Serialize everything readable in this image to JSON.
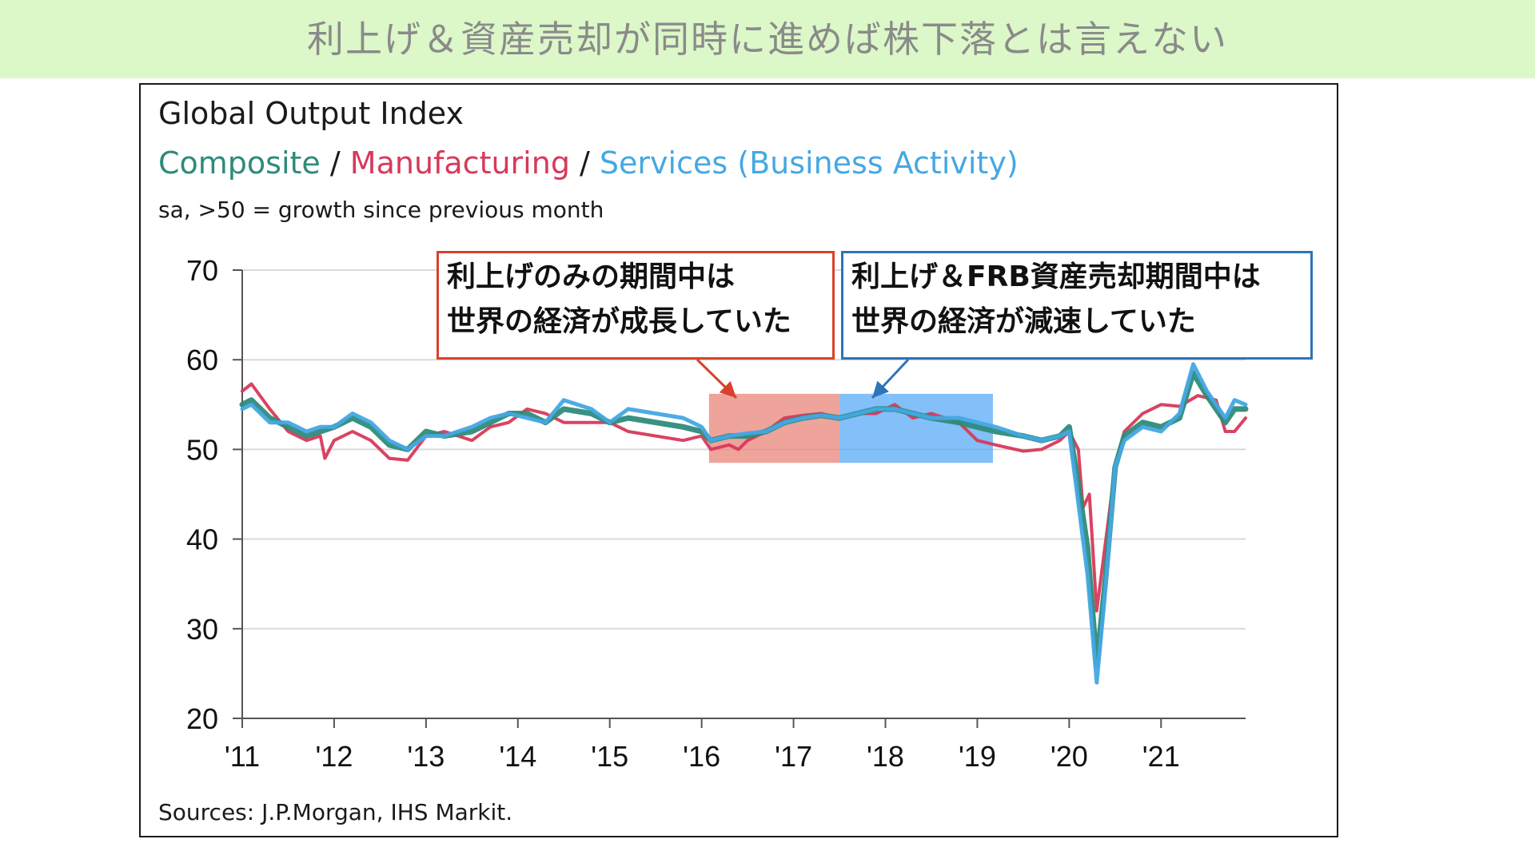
{
  "banner": {
    "text": "利上げ＆資産売却が同時に進めば株下落とは言えない"
  },
  "chart_data": {
    "type": "line",
    "title": "Global Output Index",
    "subtitle": {
      "composite": "Composite",
      "sep1": " / ",
      "manufacturing": "Manufacturing",
      "sep2": " / ",
      "services": "Services (Business Activity)"
    },
    "units_note": "sa, >50 = growth since previous month",
    "source": "Sources: J.P.Morgan, IHS Markit.",
    "ylim": [
      20,
      70
    ],
    "xlim": [
      2011.0,
      2021.92
    ],
    "yticks": [
      "70",
      "60",
      "50",
      "40",
      "30",
      "20"
    ],
    "xticks": [
      "'11",
      "'12",
      "'13",
      "'14",
      "'15",
      "'16",
      "'17",
      "'18",
      "'19",
      "'20",
      "'21"
    ],
    "grid": true,
    "series": [
      {
        "name": "Manufacturing",
        "color": "#d7395a",
        "points": [
          [
            2011.0,
            56.5
          ],
          [
            2011.1,
            57.3
          ],
          [
            2011.3,
            54.5
          ],
          [
            2011.5,
            52.0
          ],
          [
            2011.7,
            51.0
          ],
          [
            2011.85,
            51.5
          ],
          [
            2011.9,
            49.0
          ],
          [
            2012.0,
            51.0
          ],
          [
            2012.2,
            52.0
          ],
          [
            2012.4,
            51.0
          ],
          [
            2012.6,
            49.0
          ],
          [
            2012.8,
            48.8
          ],
          [
            2013.0,
            51.5
          ],
          [
            2013.2,
            52.0
          ],
          [
            2013.5,
            51.0
          ],
          [
            2013.7,
            52.5
          ],
          [
            2013.9,
            53.0
          ],
          [
            2014.1,
            54.5
          ],
          [
            2014.3,
            54.0
          ],
          [
            2014.5,
            53.0
          ],
          [
            2014.8,
            53.0
          ],
          [
            2015.0,
            53.0
          ],
          [
            2015.2,
            52.0
          ],
          [
            2015.5,
            51.5
          ],
          [
            2015.8,
            51.0
          ],
          [
            2016.0,
            51.5
          ],
          [
            2016.1,
            50.0
          ],
          [
            2016.3,
            50.5
          ],
          [
            2016.4,
            50.0
          ],
          [
            2016.5,
            51.0
          ],
          [
            2016.7,
            52.0
          ],
          [
            2016.9,
            53.5
          ],
          [
            2017.1,
            53.8
          ],
          [
            2017.3,
            54.0
          ],
          [
            2017.5,
            53.5
          ],
          [
            2017.7,
            54.0
          ],
          [
            2017.9,
            54.0
          ],
          [
            2018.1,
            55.0
          ],
          [
            2018.3,
            53.5
          ],
          [
            2018.5,
            54.0
          ],
          [
            2018.8,
            53.0
          ],
          [
            2019.0,
            51.0
          ],
          [
            2019.2,
            50.5
          ],
          [
            2019.5,
            49.8
          ],
          [
            2019.7,
            50.0
          ],
          [
            2019.9,
            51.0
          ],
          [
            2020.0,
            52.0
          ],
          [
            2020.1,
            50.0
          ],
          [
            2020.15,
            43.5
          ],
          [
            2020.22,
            45.0
          ],
          [
            2020.3,
            32.0
          ],
          [
            2020.4,
            40.0
          ],
          [
            2020.5,
            48.0
          ],
          [
            2020.6,
            52.0
          ],
          [
            2020.8,
            54.0
          ],
          [
            2021.0,
            55.0
          ],
          [
            2021.2,
            54.8
          ],
          [
            2021.4,
            56.0
          ],
          [
            2021.6,
            55.5
          ],
          [
            2021.7,
            52.0
          ],
          [
            2021.8,
            52.0
          ],
          [
            2021.92,
            53.5
          ]
        ]
      },
      {
        "name": "Composite",
        "color": "#2e8b7a",
        "points": [
          [
            2011.0,
            55.0
          ],
          [
            2011.1,
            55.5
          ],
          [
            2011.3,
            53.5
          ],
          [
            2011.5,
            52.5
          ],
          [
            2011.7,
            51.5
          ],
          [
            2011.85,
            52.0
          ],
          [
            2012.0,
            52.5
          ],
          [
            2012.2,
            53.5
          ],
          [
            2012.4,
            52.5
          ],
          [
            2012.6,
            50.5
          ],
          [
            2012.8,
            50.0
          ],
          [
            2013.0,
            52.0
          ],
          [
            2013.2,
            51.5
          ],
          [
            2013.5,
            52.0
          ],
          [
            2013.7,
            53.0
          ],
          [
            2013.9,
            54.0
          ],
          [
            2014.1,
            54.0
          ],
          [
            2014.3,
            53.0
          ],
          [
            2014.5,
            54.5
          ],
          [
            2014.8,
            54.0
          ],
          [
            2015.0,
            53.0
          ],
          [
            2015.2,
            53.5
          ],
          [
            2015.5,
            53.0
          ],
          [
            2015.8,
            52.5
          ],
          [
            2016.0,
            52.0
          ],
          [
            2016.1,
            51.0
          ],
          [
            2016.3,
            51.5
          ],
          [
            2016.5,
            51.5
          ],
          [
            2016.7,
            52.0
          ],
          [
            2016.9,
            53.0
          ],
          [
            2017.1,
            53.5
          ],
          [
            2017.3,
            53.8
          ],
          [
            2017.5,
            53.5
          ],
          [
            2017.7,
            54.0
          ],
          [
            2017.9,
            54.5
          ],
          [
            2018.1,
            54.5
          ],
          [
            2018.3,
            54.0
          ],
          [
            2018.5,
            53.5
          ],
          [
            2018.8,
            53.0
          ],
          [
            2019.0,
            52.5
          ],
          [
            2019.2,
            52.0
          ],
          [
            2019.5,
            51.5
          ],
          [
            2019.7,
            51.0
          ],
          [
            2019.9,
            51.5
          ],
          [
            2020.0,
            52.5
          ],
          [
            2020.1,
            46.0
          ],
          [
            2020.2,
            39.0
          ],
          [
            2020.3,
            26.0
          ],
          [
            2020.4,
            36.0
          ],
          [
            2020.5,
            48.0
          ],
          [
            2020.6,
            51.5
          ],
          [
            2020.8,
            53.0
          ],
          [
            2021.0,
            52.5
          ],
          [
            2021.2,
            53.5
          ],
          [
            2021.35,
            58.5
          ],
          [
            2021.5,
            56.0
          ],
          [
            2021.7,
            53.0
          ],
          [
            2021.8,
            54.5
          ],
          [
            2021.92,
            54.5
          ]
        ]
      },
      {
        "name": "Services (Business Activity)",
        "color": "#45a8e3",
        "points": [
          [
            2011.0,
            54.5
          ],
          [
            2011.1,
            55.0
          ],
          [
            2011.3,
            53.0
          ],
          [
            2011.5,
            53.0
          ],
          [
            2011.7,
            52.0
          ],
          [
            2011.85,
            52.5
          ],
          [
            2012.0,
            52.5
          ],
          [
            2012.2,
            54.0
          ],
          [
            2012.4,
            53.0
          ],
          [
            2012.6,
            51.0
          ],
          [
            2012.8,
            50.0
          ],
          [
            2013.0,
            51.5
          ],
          [
            2013.2,
            51.5
          ],
          [
            2013.5,
            52.5
          ],
          [
            2013.7,
            53.5
          ],
          [
            2013.9,
            54.0
          ],
          [
            2014.1,
            53.5
          ],
          [
            2014.3,
            53.0
          ],
          [
            2014.5,
            55.5
          ],
          [
            2014.8,
            54.5
          ],
          [
            2015.0,
            53.0
          ],
          [
            2015.2,
            54.5
          ],
          [
            2015.5,
            54.0
          ],
          [
            2015.8,
            53.5
          ],
          [
            2016.0,
            52.5
          ],
          [
            2016.1,
            51.0
          ],
          [
            2016.3,
            51.5
          ],
          [
            2016.5,
            51.8
          ],
          [
            2016.7,
            52.0
          ],
          [
            2016.9,
            53.0
          ],
          [
            2017.1,
            53.5
          ],
          [
            2017.3,
            53.8
          ],
          [
            2017.5,
            53.5
          ],
          [
            2017.7,
            54.0
          ],
          [
            2017.9,
            54.5
          ],
          [
            2018.1,
            54.5
          ],
          [
            2018.3,
            54.0
          ],
          [
            2018.5,
            53.5
          ],
          [
            2018.8,
            53.5
          ],
          [
            2019.0,
            53.0
          ],
          [
            2019.2,
            52.5
          ],
          [
            2019.5,
            51.5
          ],
          [
            2019.7,
            51.0
          ],
          [
            2019.9,
            51.5
          ],
          [
            2020.0,
            52.0
          ],
          [
            2020.1,
            44.0
          ],
          [
            2020.2,
            36.0
          ],
          [
            2020.3,
            24.0
          ],
          [
            2020.4,
            35.0
          ],
          [
            2020.5,
            48.0
          ],
          [
            2020.6,
            51.0
          ],
          [
            2020.8,
            52.5
          ],
          [
            2021.0,
            52.0
          ],
          [
            2021.2,
            54.0
          ],
          [
            2021.35,
            59.5
          ],
          [
            2021.5,
            56.5
          ],
          [
            2021.7,
            53.5
          ],
          [
            2021.8,
            55.5
          ],
          [
            2021.92,
            55.0
          ]
        ]
      }
    ],
    "highlights": [
      {
        "name": "rate-hike-only-period",
        "from": 2016.08,
        "to": 2017.5,
        "ymin": 48.5,
        "ymax": 56.2,
        "color": "#e8847a"
      },
      {
        "name": "rate-hike-and-balance-sheet-period",
        "from": 2017.5,
        "to": 2019.17,
        "ymin": 48.5,
        "ymax": 56.2,
        "color": "#5aaaf5"
      }
    ],
    "annotations": {
      "red": {
        "line1": "利上げのみの期間中は",
        "line2": "世界の経済が成長していた",
        "color": "#d9412a"
      },
      "blue": {
        "line1": "利上げ＆FRB資産売却期間中は",
        "line2": "世界の経済が減速していた",
        "color": "#2d74b8"
      }
    }
  }
}
